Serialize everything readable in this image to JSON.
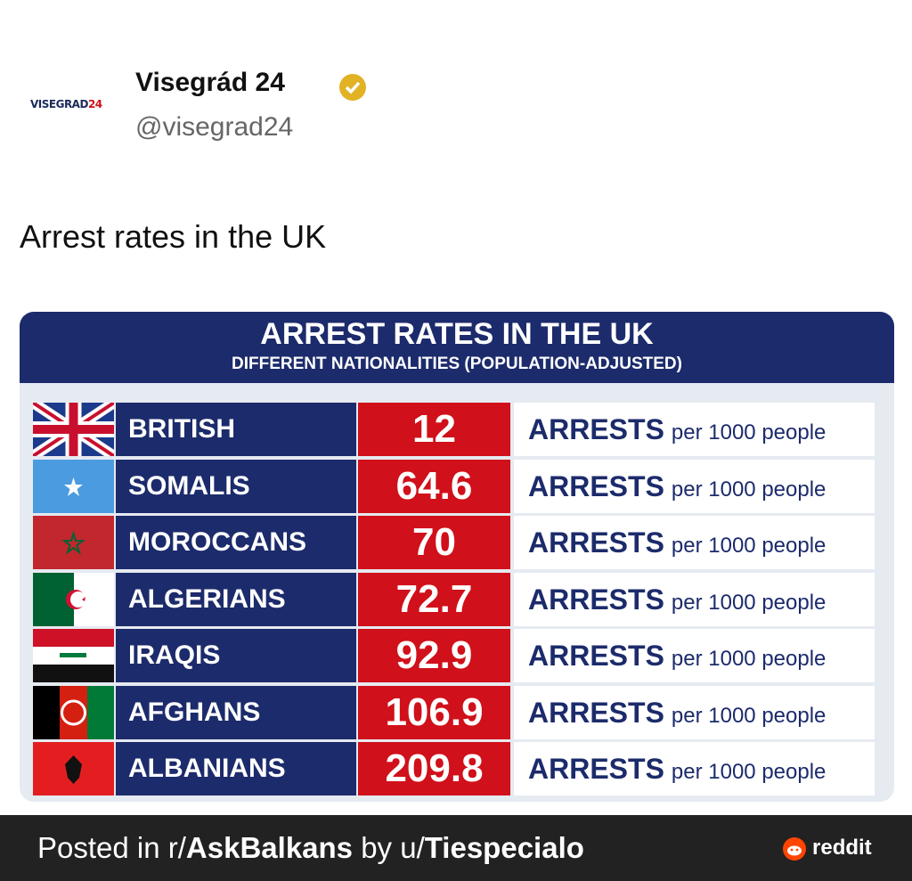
{
  "post": {
    "logo": {
      "name": "VISEGRAD",
      "number": "24"
    },
    "author": "Visegrád 24",
    "handle": "@visegrad24",
    "text": "Arrest rates in the UK"
  },
  "infographic": {
    "title": "ARREST RATES IN THE UK",
    "subtitle": "DIFFERENT NATIONALITIES (POPULATION-ADJUSTED)",
    "rows": [
      {
        "nationality": "BRITISH",
        "rate": 12,
        "unit": "ARRESTS",
        "per": "per 1000 people"
      },
      {
        "nationality": "SOMALIS",
        "rate": 64.6,
        "unit": "ARRESTS",
        "per": "per 1000 people"
      },
      {
        "nationality": "MOROCCANS",
        "rate": 70,
        "unit": "ARRESTS",
        "per": "per 1000 people"
      },
      {
        "nationality": "ALGERIANS",
        "rate": 72.7,
        "unit": "ARRESTS",
        "per": "per 1000 people"
      },
      {
        "nationality": "IRAQIS",
        "rate": 92.9,
        "unit": "ARRESTS",
        "per": "per 1000 people"
      },
      {
        "nationality": "AFGHANS",
        "rate": 106.9,
        "unit": "ARRESTS",
        "per": "per 1000 people"
      },
      {
        "nationality": "ALBANIANS",
        "rate": 209.8,
        "unit": "ARRESTS",
        "per": "per 1000 people"
      }
    ]
  },
  "footer": {
    "prefix": "Posted in r/",
    "subreddit": "AskBalkans",
    "middle": " by u/",
    "user": "Tiespecialo",
    "brand": "reddit"
  }
}
